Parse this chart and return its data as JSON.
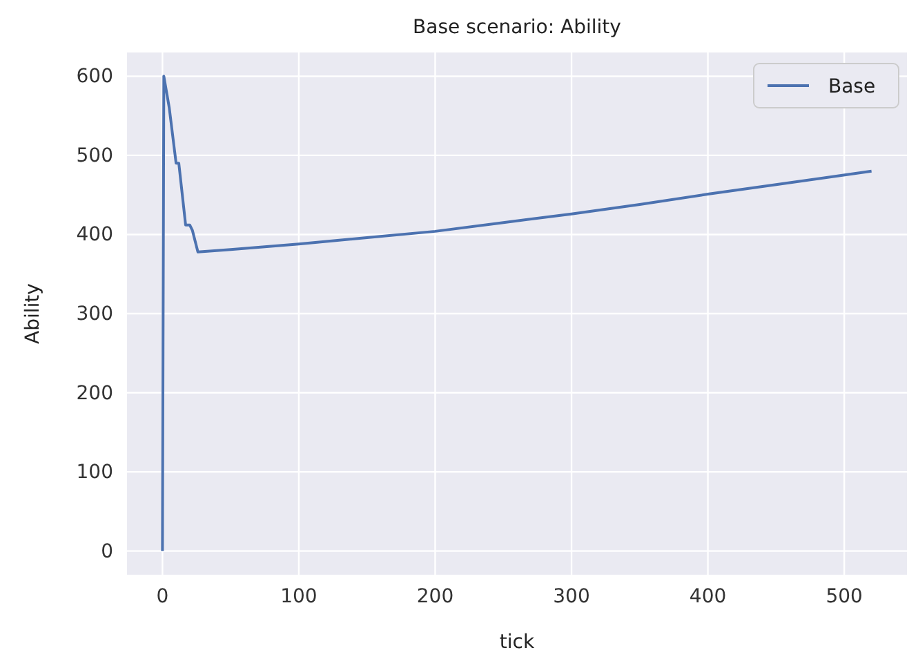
{
  "chart_data": {
    "type": "line",
    "title": "Base scenario: Ability",
    "xlabel": "tick",
    "ylabel": "Ability",
    "x": [
      0,
      1,
      5,
      10,
      12,
      17,
      20,
      22,
      26,
      50,
      100,
      150,
      200,
      250,
      300,
      350,
      400,
      450,
      520
    ],
    "series": [
      {
        "name": "Base",
        "color": "#4c72b0",
        "values": [
          0,
          600,
          560,
          490,
          490,
          412,
          412,
          405,
          378,
          381,
          388,
          396,
          404,
          415,
          426,
          438,
          451,
          463,
          480
        ]
      }
    ],
    "xlim": [
      -26,
      546
    ],
    "ylim": [
      -30,
      630
    ],
    "xticks": [
      0,
      100,
      200,
      300,
      400,
      500
    ],
    "yticks": [
      0,
      100,
      200,
      300,
      400,
      500,
      600
    ],
    "grid": true,
    "legend": "top right",
    "marker": "none",
    "line_style": "solid"
  }
}
